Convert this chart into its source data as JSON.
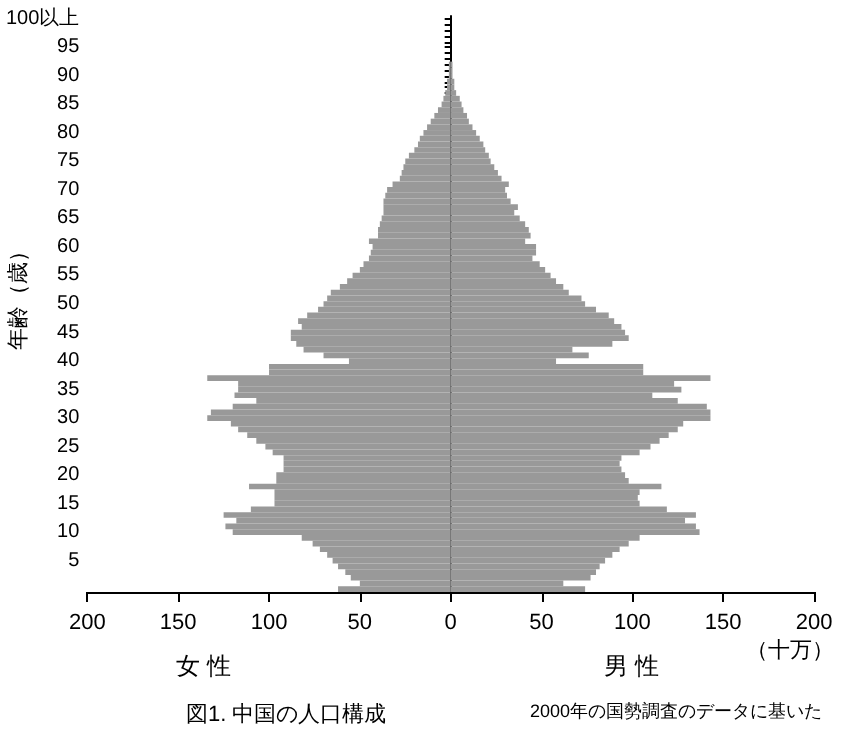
{
  "chart_data": {
    "type": "bar",
    "orientation": "horizontal",
    "title": "図1. 中国の人口構成",
    "ylabel": "年齢（歳）",
    "xlabel": "（十万）",
    "annotations": [
      "女 性",
      "男 性",
      "2000年の国勢調査のデータに基いた"
    ],
    "categories": [
      "100以上",
      null,
      null,
      null,
      null,
      "95",
      null,
      null,
      null,
      null,
      "90",
      null,
      null,
      null,
      null,
      "85",
      null,
      null,
      null,
      null,
      "80",
      null,
      null,
      null,
      null,
      "75",
      null,
      null,
      null,
      null,
      "70",
      null,
      null,
      null,
      null,
      "65",
      null,
      null,
      null,
      null,
      "60",
      null,
      null,
      null,
      null,
      "55",
      null,
      null,
      null,
      null,
      "50",
      null,
      null,
      null,
      null,
      "45",
      null,
      null,
      null,
      null,
      "40",
      null,
      null,
      null,
      null,
      "35",
      null,
      null,
      null,
      null,
      "30",
      null,
      null,
      null,
      null,
      "25",
      null,
      null,
      null,
      null,
      "20",
      null,
      null,
      null,
      null,
      "15",
      null,
      null,
      null,
      null,
      "10",
      null,
      null,
      null,
      null,
      "5",
      null,
      null,
      null,
      null,
      null
    ],
    "series": [
      {
        "color": "#999999",
        "values": [
          0,
          0,
          0,
          0,
          0,
          0,
          0,
          0,
          -1,
          -1,
          -1,
          -2,
          -2,
          -3,
          -4,
          -5,
          -7,
          -9,
          -11,
          -13,
          -15,
          -17,
          -18,
          -20,
          -23,
          -25,
          -26,
          -27,
          -28,
          -32,
          -35,
          -36,
          -37,
          -37,
          -37,
          -38,
          -39,
          -40,
          -40,
          -45,
          -43,
          -44,
          -45,
          -48,
          -50,
          -54,
          -57,
          -61,
          -66,
          -68,
          -70,
          -73,
          -79,
          -84,
          -82,
          -88,
          -88,
          -85,
          -81,
          -70,
          -56,
          -100,
          -100,
          -134,
          -117,
          -117,
          -119,
          -107,
          -120,
          -132,
          -134,
          -121,
          -117,
          -112,
          -107,
          -102,
          -98,
          -92,
          -92,
          -92,
          -96,
          -96,
          -111,
          -97,
          -97,
          -97,
          -110,
          -125,
          -118,
          -124,
          -120,
          -82,
          -76,
          -72,
          -68,
          -65,
          -62,
          -58,
          -55,
          -50,
          -62
        ]
      },
      {
        "color": "#999999",
        "values": [
          0,
          0,
          0,
          0,
          0,
          0,
          0,
          0,
          1,
          1,
          1,
          2,
          2,
          3,
          5,
          6,
          7,
          9,
          10,
          12,
          14,
          16,
          18,
          19,
          21,
          22,
          24,
          26,
          28,
          32,
          30,
          31,
          33,
          37,
          35,
          38,
          41,
          43,
          44,
          41,
          47,
          47,
          45,
          49,
          52,
          55,
          58,
          62,
          65,
          72,
          74,
          80,
          87,
          90,
          94,
          96,
          98,
          89,
          67,
          76,
          58,
          106,
          106,
          143,
          123,
          127,
          111,
          125,
          141,
          143,
          143,
          128,
          125,
          120,
          115,
          110,
          104,
          94,
          93,
          94,
          96,
          98,
          116,
          104,
          103,
          104,
          119,
          135,
          129,
          135,
          137,
          104,
          98,
          93,
          89,
          85,
          82,
          80,
          77,
          62,
          74
        ]
      }
    ],
    "xlim": [
      -200,
      200
    ],
    "xticks": [
      {
        "value": -200,
        "label": "200"
      },
      {
        "value": -150,
        "label": "150"
      },
      {
        "value": -100,
        "label": "100"
      },
      {
        "value": -50,
        "label": "50"
      },
      0,
      50,
      100,
      150,
      200
    ],
    "stacked": true
  }
}
